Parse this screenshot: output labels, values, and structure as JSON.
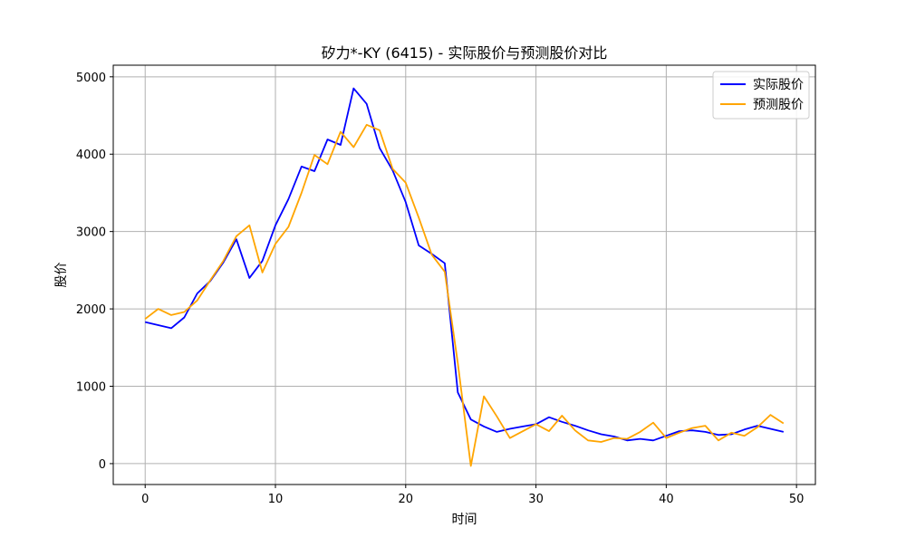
{
  "chart_data": {
    "type": "line",
    "title": "矽力*-KY (6415) - 实际股价与预测股价对比",
    "xlabel": "时间",
    "ylabel": "股价",
    "xlim": [
      -2.45,
      51.45
    ],
    "ylim": [
      -270,
      5150
    ],
    "xticks": [
      0,
      10,
      20,
      30,
      40,
      50
    ],
    "yticks": [
      0,
      1000,
      2000,
      3000,
      4000,
      5000
    ],
    "grid": true,
    "legend_position": "top-right",
    "x": [
      0,
      1,
      2,
      3,
      4,
      5,
      6,
      7,
      8,
      9,
      10,
      11,
      12,
      13,
      14,
      15,
      16,
      17,
      18,
      19,
      20,
      21,
      22,
      23,
      24,
      25,
      26,
      27,
      28,
      29,
      30,
      31,
      32,
      33,
      34,
      35,
      36,
      37,
      38,
      39,
      40,
      41,
      42,
      43,
      44,
      45,
      46,
      47,
      48,
      49
    ],
    "series": [
      {
        "name": "实际股价",
        "color": "#0000ff",
        "values": [
          1830,
          1790,
          1750,
          1890,
          2200,
          2360,
          2600,
          2900,
          2400,
          2620,
          3080,
          3420,
          3840,
          3780,
          4190,
          4120,
          4850,
          4650,
          4080,
          3790,
          3380,
          2820,
          2710,
          2590,
          920,
          570,
          480,
          410,
          450,
          480,
          510,
          600,
          540,
          490,
          430,
          380,
          350,
          300,
          320,
          300,
          360,
          420,
          430,
          410,
          370,
          380,
          440,
          490,
          450,
          410
        ]
      },
      {
        "name": "预测股价",
        "color": "#ffa500",
        "values": [
          1870,
          2000,
          1920,
          1960,
          2110,
          2370,
          2620,
          2940,
          3080,
          2470,
          2840,
          3060,
          3500,
          3990,
          3870,
          4290,
          4090,
          4380,
          4310,
          3810,
          3630,
          3180,
          2700,
          2480,
          1300,
          -30,
          870,
          610,
          330,
          420,
          510,
          420,
          620,
          430,
          300,
          280,
          330,
          320,
          410,
          530,
          330,
          400,
          460,
          490,
          300,
          400,
          360,
          470,
          630,
          520
        ]
      }
    ]
  }
}
